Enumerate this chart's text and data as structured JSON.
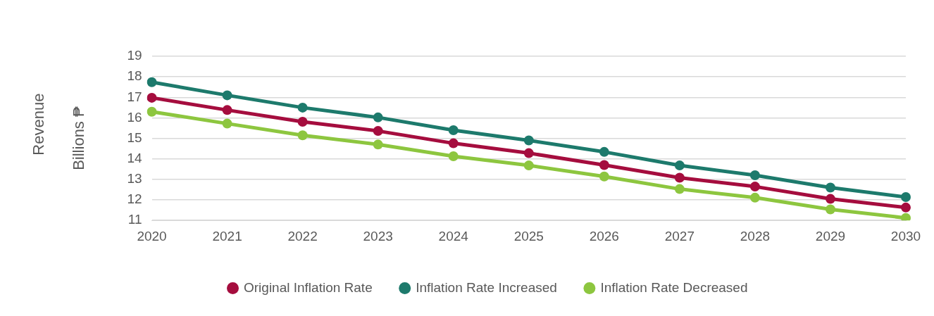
{
  "chart_data": {
    "type": "line",
    "ylabel": "Billions ₱",
    "annotations": [
      "Revenue"
    ],
    "categories": [
      "2020",
      "2021",
      "2022",
      "2023",
      "2024",
      "2025",
      "2026",
      "2027",
      "2028",
      "2029",
      "2030"
    ],
    "series": [
      {
        "name": "Original Inflation Rate",
        "color": "#a50d3e",
        "values": [
          16.98,
          16.38,
          15.81,
          15.36,
          14.76,
          14.28,
          13.7,
          13.08,
          12.65,
          12.05,
          11.63
        ]
      },
      {
        "name": "Inflation Rate Increased",
        "color": "#1d7a6c",
        "values": [
          17.74,
          17.1,
          16.5,
          16.02,
          15.4,
          14.9,
          14.34,
          13.68,
          13.2,
          12.6,
          12.14
        ]
      },
      {
        "name": "Inflation Rate Decreased",
        "color": "#8dc63f",
        "values": [
          16.3,
          15.72,
          15.15,
          14.7,
          14.13,
          13.68,
          13.14,
          12.53,
          12.11,
          11.54,
          11.12
        ]
      }
    ],
    "ylim": [
      11,
      19
    ],
    "yticks": [
      11,
      12,
      13,
      14,
      15,
      16,
      17,
      18,
      19
    ],
    "grid": "y",
    "legend": "bottom",
    "marker": "circle",
    "line_style": "solid"
  }
}
